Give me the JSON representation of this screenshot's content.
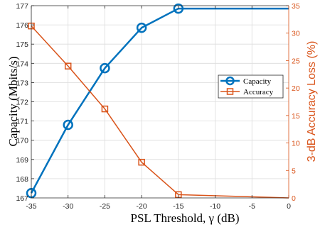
{
  "chart_data": {
    "type": "line",
    "xlabel": "PSL Threshold, γ (dB)",
    "ylabel_left": "Capacity (Mbits/s)",
    "ylabel_right": "3-dB Accuracy Loss (%)",
    "xlim": [
      -35,
      0
    ],
    "ylim_left": [
      167,
      177
    ],
    "ylim_right": [
      0,
      35
    ],
    "x_ticks": [
      "-35",
      "-30",
      "-25",
      "-20",
      "-15",
      "-10",
      "-5",
      "0"
    ],
    "y_left_ticks": [
      "167",
      "168",
      "169",
      "170",
      "171",
      "172",
      "173",
      "174",
      "175",
      "176",
      "177"
    ],
    "y_right_ticks": [
      "0",
      "5",
      "10",
      "15",
      "20",
      "25",
      "30",
      "35"
    ],
    "grid": true,
    "legend_position": "center-right",
    "series": [
      {
        "name": "Capacity",
        "axis": "left",
        "color": "#0072BD",
        "marker": "circle",
        "x": [
          -35,
          -30,
          -25,
          -20,
          -15,
          -10,
          -5,
          0
        ],
        "y": [
          167.25,
          170.8,
          173.75,
          175.85,
          176.85,
          176.85,
          176.85,
          176.85
        ],
        "marker_x": [
          -35,
          -30,
          -25,
          -20,
          -15
        ]
      },
      {
        "name": "Accuracy",
        "axis": "right",
        "color": "#D95319",
        "marker": "square",
        "x": [
          -35,
          -30,
          -25,
          -20,
          -15,
          0
        ],
        "y": [
          31.3,
          24.0,
          16.2,
          6.5,
          0.6,
          0.0
        ],
        "marker_x": [
          -35,
          -30,
          -25,
          -20,
          -15
        ]
      }
    ]
  }
}
